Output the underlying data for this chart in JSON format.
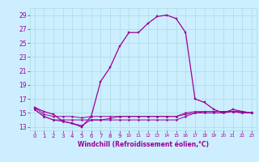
{
  "xlabel": "Windchill (Refroidissement éolien,°C)",
  "background_color": "#cceeff",
  "grid_color": "#aadddd",
  "line_color": "#990099",
  "xlim": [
    -0.5,
    23.5
  ],
  "ylim": [
    12.5,
    30.0
  ],
  "xticks": [
    0,
    1,
    2,
    3,
    4,
    5,
    6,
    7,
    8,
    9,
    10,
    11,
    12,
    13,
    14,
    15,
    16,
    17,
    18,
    19,
    20,
    21,
    22,
    23
  ],
  "yticks": [
    13,
    15,
    17,
    19,
    21,
    23,
    25,
    27,
    29
  ],
  "main_line": [
    [
      0,
      15.8
    ],
    [
      1,
      15.2
    ],
    [
      2,
      14.8
    ],
    [
      3,
      13.8
    ],
    [
      4,
      13.5
    ],
    [
      5,
      13.0
    ],
    [
      6,
      14.5
    ],
    [
      7,
      19.5
    ],
    [
      8,
      21.5
    ],
    [
      9,
      24.5
    ],
    [
      10,
      26.5
    ],
    [
      11,
      26.5
    ],
    [
      12,
      27.8
    ],
    [
      13,
      28.8
    ],
    [
      14,
      29.0
    ],
    [
      15,
      28.5
    ],
    [
      16,
      26.5
    ],
    [
      17,
      17.0
    ],
    [
      18,
      16.5
    ],
    [
      19,
      15.5
    ],
    [
      20,
      15.0
    ],
    [
      21,
      15.5
    ],
    [
      22,
      15.2
    ],
    [
      23,
      15.0
    ]
  ],
  "flat_lines": [
    [
      [
        0,
        15.8
      ],
      [
        1,
        14.8
      ],
      [
        2,
        14.5
      ],
      [
        3,
        14.5
      ],
      [
        4,
        14.5
      ],
      [
        5,
        14.3
      ],
      [
        6,
        14.5
      ],
      [
        7,
        14.5
      ],
      [
        8,
        14.5
      ],
      [
        9,
        14.5
      ],
      [
        10,
        14.5
      ],
      [
        11,
        14.5
      ],
      [
        12,
        14.5
      ],
      [
        13,
        14.5
      ],
      [
        14,
        14.5
      ],
      [
        15,
        14.5
      ],
      [
        16,
        14.8
      ],
      [
        17,
        15.0
      ],
      [
        18,
        15.0
      ],
      [
        19,
        15.0
      ],
      [
        20,
        15.0
      ],
      [
        21,
        15.2
      ],
      [
        22,
        15.0
      ],
      [
        23,
        15.0
      ]
    ],
    [
      [
        0,
        15.5
      ],
      [
        1,
        14.5
      ],
      [
        2,
        14.0
      ],
      [
        3,
        14.0
      ],
      [
        4,
        14.0
      ],
      [
        5,
        14.0
      ],
      [
        6,
        14.0
      ],
      [
        7,
        14.0
      ],
      [
        8,
        14.0
      ],
      [
        9,
        14.0
      ],
      [
        10,
        14.0
      ],
      [
        11,
        14.0
      ],
      [
        12,
        14.0
      ],
      [
        13,
        14.0
      ],
      [
        14,
        14.0
      ],
      [
        15,
        14.0
      ],
      [
        16,
        14.5
      ],
      [
        17,
        15.0
      ],
      [
        18,
        15.2
      ],
      [
        19,
        15.2
      ],
      [
        20,
        15.2
      ],
      [
        21,
        15.2
      ],
      [
        22,
        15.2
      ],
      [
        23,
        15.0
      ]
    ],
    [
      [
        0,
        15.5
      ],
      [
        1,
        14.5
      ],
      [
        2,
        14.0
      ],
      [
        3,
        13.8
      ],
      [
        4,
        13.5
      ],
      [
        5,
        13.2
      ],
      [
        6,
        14.0
      ],
      [
        7,
        14.0
      ],
      [
        8,
        14.2
      ],
      [
        9,
        14.5
      ],
      [
        10,
        14.5
      ],
      [
        11,
        14.5
      ],
      [
        12,
        14.5
      ],
      [
        13,
        14.5
      ],
      [
        14,
        14.5
      ],
      [
        15,
        14.5
      ],
      [
        16,
        15.0
      ],
      [
        17,
        15.2
      ],
      [
        18,
        15.2
      ],
      [
        19,
        15.2
      ],
      [
        20,
        15.2
      ],
      [
        21,
        15.2
      ],
      [
        22,
        15.0
      ],
      [
        23,
        15.0
      ]
    ]
  ]
}
